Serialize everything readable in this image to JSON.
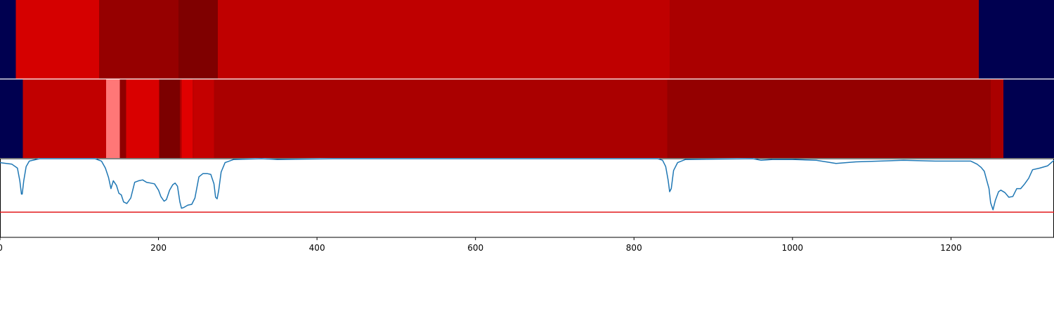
{
  "chart_data": {
    "type": "heatmap",
    "x_range": [
      0,
      1330
    ],
    "colors": {
      "background_band": "#000050",
      "signal_line": "#1f77b4",
      "threshold_line": "#e31a1c",
      "axis": "#000000",
      "separator": "#ffffff"
    },
    "tracks": [
      {
        "segments": [
          {
            "start": 0,
            "end": 20,
            "color": "#000050"
          },
          {
            "start": 20,
            "end": 125,
            "color": "#d50000"
          },
          {
            "start": 125,
            "end": 225,
            "color": "#960000"
          },
          {
            "start": 225,
            "end": 275,
            "color": "#7f0000"
          },
          {
            "start": 275,
            "end": 845,
            "color": "#bf0000"
          },
          {
            "start": 845,
            "end": 1235,
            "color": "#aa0000"
          },
          {
            "start": 1235,
            "end": 1330,
            "color": "#000050"
          }
        ]
      },
      {
        "segments": [
          {
            "start": 0,
            "end": 29,
            "color": "#000050"
          },
          {
            "start": 29,
            "end": 134,
            "color": "#c10000"
          },
          {
            "start": 134,
            "end": 151,
            "color": "#ff7777"
          },
          {
            "start": 151,
            "end": 159,
            "color": "#8e0000"
          },
          {
            "start": 159,
            "end": 201,
            "color": "#d90000"
          },
          {
            "start": 201,
            "end": 227,
            "color": "#7c0000"
          },
          {
            "start": 227,
            "end": 229,
            "color": "#aa0000"
          },
          {
            "start": 229,
            "end": 243,
            "color": "#e00000"
          },
          {
            "start": 243,
            "end": 245,
            "color": "#bf0000"
          },
          {
            "start": 245,
            "end": 270,
            "color": "#c40000"
          },
          {
            "start": 270,
            "end": 842,
            "color": "#aa0000"
          },
          {
            "start": 842,
            "end": 1250,
            "color": "#940000"
          },
          {
            "start": 1250,
            "end": 1266,
            "color": "#aa0000"
          },
          {
            "start": 1266,
            "end": 1330,
            "color": "#000050"
          }
        ]
      }
    ],
    "signal": {
      "y_range": [
        0,
        1
      ],
      "threshold": 0.32,
      "points": [
        [
          0,
          0.95
        ],
        [
          15,
          0.93
        ],
        [
          22,
          0.88
        ],
        [
          25,
          0.72
        ],
        [
          27,
          0.55
        ],
        [
          28,
          0.55
        ],
        [
          30,
          0.72
        ],
        [
          33,
          0.9
        ],
        [
          37,
          0.97
        ],
        [
          50,
          1.0
        ],
        [
          120,
          1.0
        ],
        [
          128,
          0.97
        ],
        [
          133,
          0.88
        ],
        [
          137,
          0.76
        ],
        [
          140,
          0.62
        ],
        [
          143,
          0.72
        ],
        [
          147,
          0.66
        ],
        [
          150,
          0.56
        ],
        [
          153,
          0.54
        ],
        [
          156,
          0.45
        ],
        [
          160,
          0.43
        ],
        [
          165,
          0.5
        ],
        [
          170,
          0.7
        ],
        [
          175,
          0.72
        ],
        [
          180,
          0.73
        ],
        [
          185,
          0.7
        ],
        [
          190,
          0.69
        ],
        [
          195,
          0.68
        ],
        [
          200,
          0.6
        ],
        [
          203,
          0.52
        ],
        [
          207,
          0.46
        ],
        [
          210,
          0.48
        ],
        [
          214,
          0.6
        ],
        [
          218,
          0.67
        ],
        [
          221,
          0.69
        ],
        [
          224,
          0.65
        ],
        [
          227,
          0.45
        ],
        [
          229,
          0.37
        ],
        [
          232,
          0.38
        ],
        [
          237,
          0.41
        ],
        [
          242,
          0.42
        ],
        [
          246,
          0.5
        ],
        [
          251,
          0.77
        ],
        [
          256,
          0.81
        ],
        [
          262,
          0.81
        ],
        [
          266,
          0.8
        ],
        [
          270,
          0.68
        ],
        [
          272,
          0.51
        ],
        [
          274,
          0.49
        ],
        [
          276,
          0.6
        ],
        [
          279,
          0.83
        ],
        [
          284,
          0.95
        ],
        [
          295,
          0.99
        ],
        [
          330,
          1.0
        ],
        [
          350,
          0.99
        ],
        [
          420,
          1.0
        ],
        [
          830,
          1.0
        ],
        [
          836,
          0.98
        ],
        [
          840,
          0.9
        ],
        [
          843,
          0.73
        ],
        [
          845,
          0.58
        ],
        [
          847,
          0.62
        ],
        [
          850,
          0.85
        ],
        [
          855,
          0.95
        ],
        [
          865,
          0.99
        ],
        [
          950,
          1.0
        ],
        [
          960,
          0.98
        ],
        [
          975,
          0.99
        ],
        [
          1000,
          0.99
        ],
        [
          1030,
          0.98
        ],
        [
          1055,
          0.94
        ],
        [
          1080,
          0.96
        ],
        [
          1110,
          0.97
        ],
        [
          1140,
          0.98
        ],
        [
          1180,
          0.97
        ],
        [
          1210,
          0.97
        ],
        [
          1225,
          0.97
        ],
        [
          1233,
          0.93
        ],
        [
          1238,
          0.89
        ],
        [
          1242,
          0.84
        ],
        [
          1245,
          0.73
        ],
        [
          1248,
          0.62
        ],
        [
          1250,
          0.44
        ],
        [
          1253,
          0.35
        ],
        [
          1256,
          0.47
        ],
        [
          1260,
          0.58
        ],
        [
          1263,
          0.6
        ],
        [
          1268,
          0.57
        ],
        [
          1273,
          0.51
        ],
        [
          1278,
          0.52
        ],
        [
          1283,
          0.62
        ],
        [
          1288,
          0.62
        ],
        [
          1293,
          0.68
        ],
        [
          1298,
          0.75
        ],
        [
          1303,
          0.86
        ],
        [
          1312,
          0.88
        ],
        [
          1322,
          0.91
        ],
        [
          1330,
          0.98
        ]
      ]
    },
    "x_ticks": [
      {
        "value": 0,
        "label": "0"
      },
      {
        "value": 200,
        "label": "200"
      },
      {
        "value": 400,
        "label": "400"
      },
      {
        "value": 600,
        "label": "600"
      },
      {
        "value": 800,
        "label": "800"
      },
      {
        "value": 1000,
        "label": "1000"
      },
      {
        "value": 1200,
        "label": "1200"
      }
    ],
    "grid": false,
    "legend": "none"
  }
}
